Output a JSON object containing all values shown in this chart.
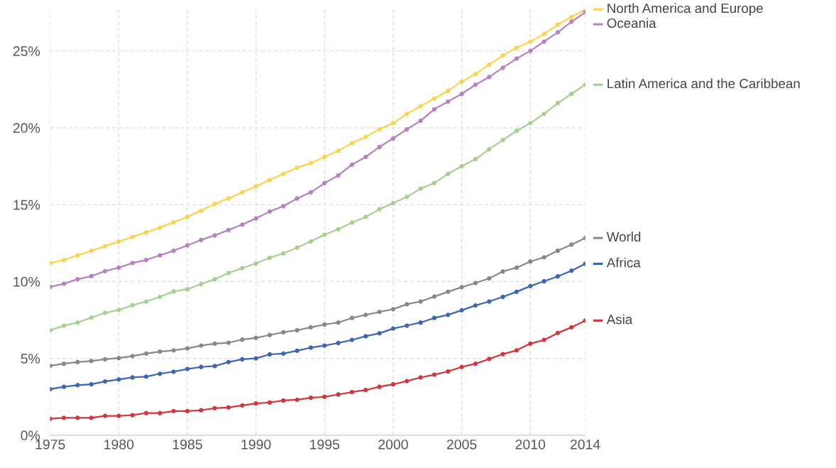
{
  "chart_data": {
    "type": "line",
    "x": [
      1975,
      1976,
      1977,
      1978,
      1979,
      1980,
      1981,
      1982,
      1983,
      1984,
      1985,
      1986,
      1987,
      1988,
      1989,
      1990,
      1991,
      1992,
      1993,
      1994,
      1995,
      1996,
      1997,
      1998,
      1999,
      2000,
      2001,
      2002,
      2003,
      2004,
      2005,
      2006,
      2007,
      2008,
      2009,
      2010,
      2011,
      2012,
      2013,
      2014
    ],
    "series": [
      {
        "name": "North America and Europe",
        "color": "#fdd24e",
        "values": [
          11.2,
          11.4,
          11.7,
          12.0,
          12.3,
          12.6,
          12.9,
          13.2,
          13.5,
          13.85,
          14.2,
          14.6,
          15.05,
          15.4,
          15.8,
          16.2,
          16.6,
          17.0,
          17.4,
          17.7,
          18.1,
          18.5,
          19.0,
          19.4,
          19.9,
          20.3,
          20.9,
          21.4,
          21.9,
          22.4,
          23.0,
          23.5,
          24.1,
          24.7,
          25.2,
          25.6,
          26.1,
          26.7,
          27.2,
          27.7
        ]
      },
      {
        "name": "Oceania",
        "color": "#b780c2",
        "values": [
          9.65,
          9.85,
          10.15,
          10.35,
          10.67,
          10.9,
          11.2,
          11.4,
          11.7,
          12.0,
          12.35,
          12.7,
          13.0,
          13.35,
          13.7,
          14.1,
          14.55,
          14.9,
          15.4,
          15.8,
          16.4,
          16.9,
          17.6,
          18.1,
          18.75,
          19.3,
          19.9,
          20.45,
          21.2,
          21.7,
          22.2,
          22.8,
          23.3,
          23.9,
          24.5,
          25.0,
          25.6,
          26.2,
          26.9,
          27.5
        ]
      },
      {
        "name": "Latin America and the Caribbean",
        "color": "#a3d28e",
        "values": [
          6.83,
          7.13,
          7.33,
          7.65,
          7.96,
          8.15,
          8.46,
          8.7,
          9.0,
          9.35,
          9.5,
          9.83,
          10.15,
          10.55,
          10.87,
          11.17,
          11.54,
          11.83,
          12.2,
          12.6,
          13.04,
          13.4,
          13.83,
          14.2,
          14.7,
          15.1,
          15.5,
          16.04,
          16.4,
          17.0,
          17.5,
          17.96,
          18.6,
          19.2,
          19.8,
          20.3,
          20.9,
          21.6,
          22.2,
          22.8
        ]
      },
      {
        "name": "World",
        "color": "#888888",
        "values": [
          4.52,
          4.65,
          4.76,
          4.83,
          4.94,
          5.02,
          5.15,
          5.31,
          5.44,
          5.52,
          5.65,
          5.83,
          5.96,
          6.02,
          6.22,
          6.33,
          6.52,
          6.7,
          6.83,
          7.02,
          7.2,
          7.33,
          7.63,
          7.83,
          8.02,
          8.2,
          8.52,
          8.7,
          9.02,
          9.33,
          9.63,
          9.9,
          10.2,
          10.65,
          10.9,
          11.3,
          11.57,
          12.0,
          12.4,
          12.83
        ]
      },
      {
        "name": "Africa",
        "color": "#3b66b6",
        "values": [
          3.0,
          3.15,
          3.26,
          3.31,
          3.5,
          3.63,
          3.76,
          3.81,
          4.0,
          4.13,
          4.31,
          4.44,
          4.5,
          4.76,
          4.94,
          5.0,
          5.26,
          5.31,
          5.5,
          5.7,
          5.83,
          6.0,
          6.2,
          6.44,
          6.63,
          6.94,
          7.13,
          7.33,
          7.63,
          7.83,
          8.13,
          8.44,
          8.7,
          9.0,
          9.33,
          9.7,
          10.02,
          10.33,
          10.7,
          11.15
        ]
      },
      {
        "name": "Asia",
        "color": "#d2353b",
        "values": [
          1.07,
          1.13,
          1.13,
          1.13,
          1.26,
          1.26,
          1.31,
          1.44,
          1.44,
          1.57,
          1.57,
          1.63,
          1.76,
          1.81,
          1.94,
          2.07,
          2.13,
          2.26,
          2.31,
          2.44,
          2.5,
          2.65,
          2.81,
          2.94,
          3.15,
          3.31,
          3.52,
          3.76,
          3.94,
          4.15,
          4.44,
          4.65,
          4.96,
          5.28,
          5.52,
          5.96,
          6.2,
          6.65,
          7.02,
          7.46
        ]
      }
    ],
    "xlim": [
      1975,
      2014
    ],
    "xticks": [
      1975,
      1980,
      1985,
      1990,
      1995,
      2000,
      2005,
      2010,
      2014
    ],
    "ylim": [
      0,
      27.7
    ],
    "yticks": [
      {
        "value": 0,
        "label": "0%"
      },
      {
        "value": 5,
        "label": "5%"
      },
      {
        "value": 10,
        "label": "10%"
      },
      {
        "value": 15,
        "label": "15%"
      },
      {
        "value": 20,
        "label": "20%"
      },
      {
        "value": 25,
        "label": "25%"
      }
    ],
    "grid": true,
    "legend": "right",
    "marker": "circle",
    "line_style": "solid"
  }
}
